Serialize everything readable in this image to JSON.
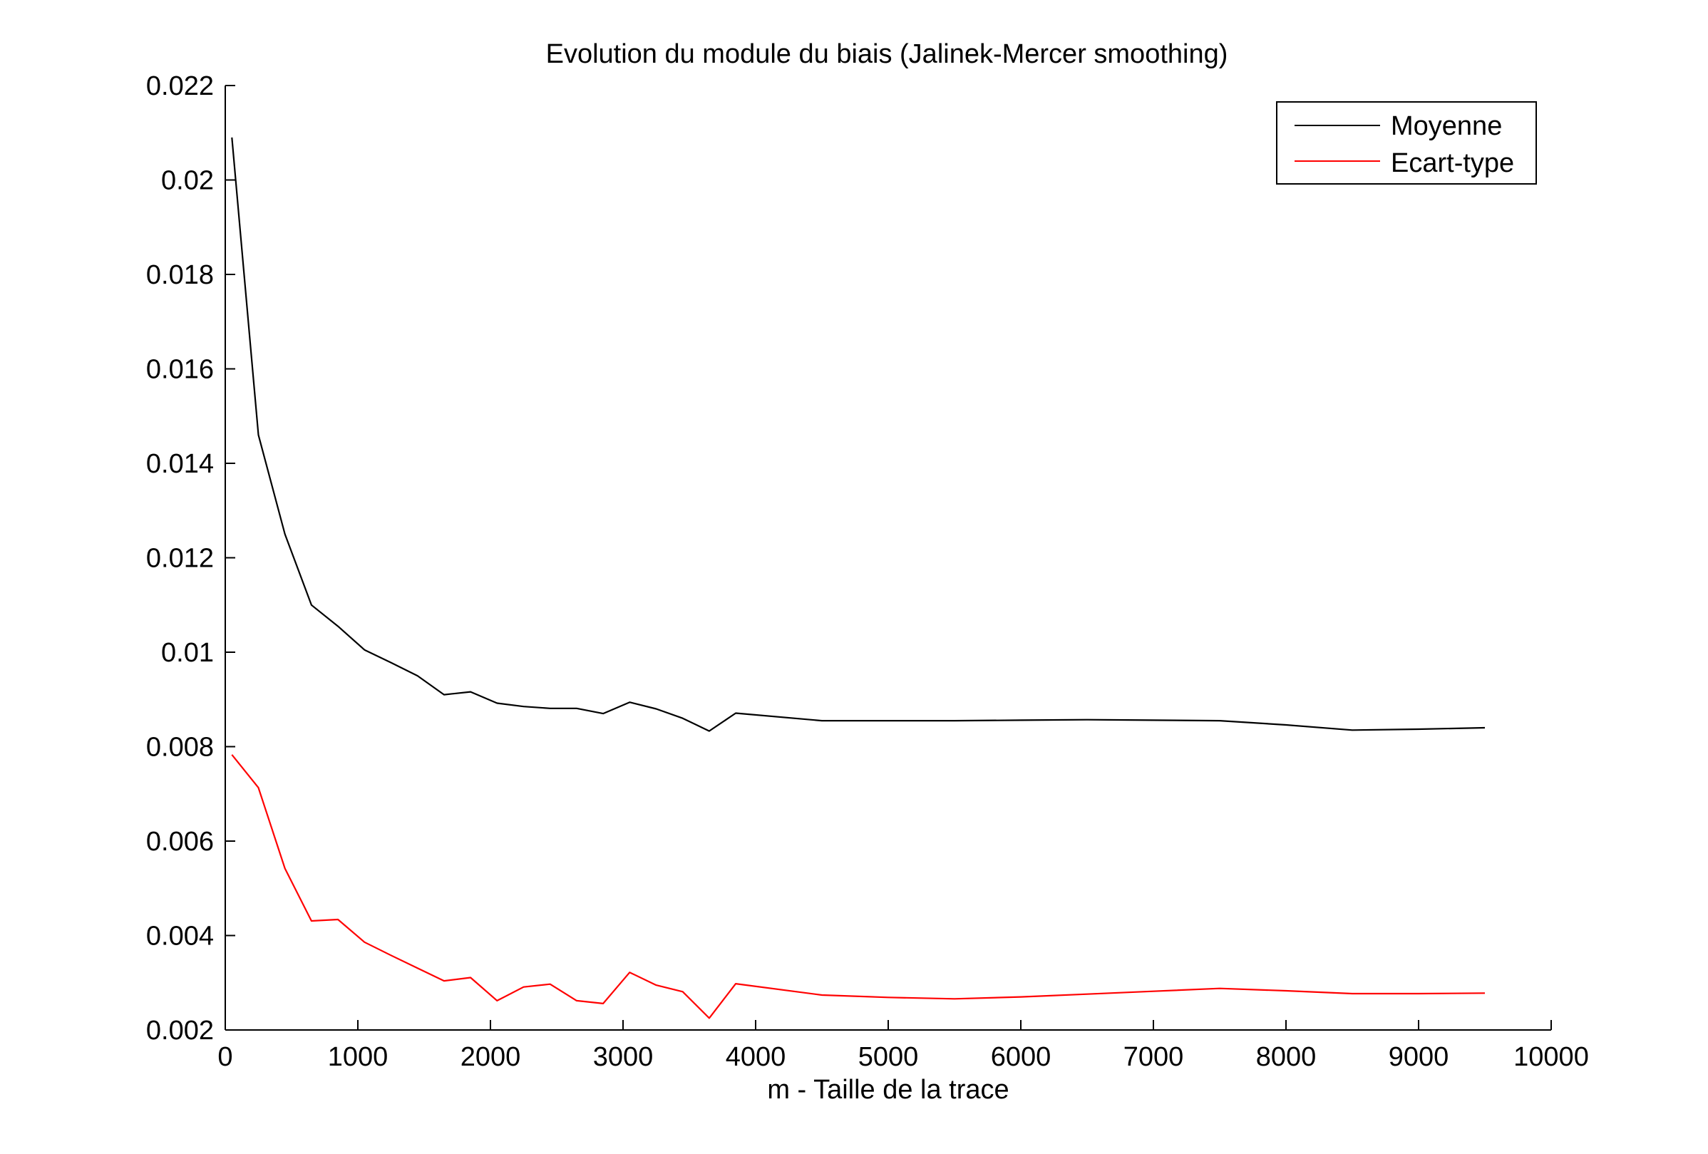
{
  "chart_data": {
    "type": "line",
    "title": "Evolution du module du biais (Jalinek-Mercer smoothing)",
    "xlabel": "m - Taille de la trace",
    "ylabel": "",
    "xlim": [
      0,
      10000
    ],
    "ylim": [
      0.002,
      0.022
    ],
    "x_ticks": [
      0,
      1000,
      2000,
      3000,
      4000,
      5000,
      6000,
      7000,
      8000,
      9000,
      10000
    ],
    "x_tick_labels": [
      "0",
      "1000",
      "2000",
      "3000",
      "4000",
      "5000",
      "6000",
      "7000",
      "8000",
      "9000",
      "10000"
    ],
    "y_ticks": [
      0.002,
      0.004,
      0.006,
      0.008,
      0.01,
      0.012,
      0.014,
      0.016,
      0.018,
      0.02,
      0.022
    ],
    "y_tick_labels": [
      "0.002",
      "0.004",
      "0.006",
      "0.008",
      "0.01",
      "0.012",
      "0.014",
      "0.016",
      "0.018",
      "0.02",
      "0.022"
    ],
    "grid": false,
    "legend_position": "top-right",
    "series": [
      {
        "name": "Moyenne",
        "color": "#000000",
        "x": [
          50,
          250,
          450,
          650,
          850,
          1050,
          1250,
          1450,
          1650,
          1850,
          2050,
          2250,
          2450,
          2650,
          2850,
          3050,
          3250,
          3450,
          3650,
          3850,
          4500,
          5000,
          5500,
          6000,
          6500,
          7000,
          7500,
          8000,
          8500,
          9000,
          9500
        ],
        "y": [
          0.0209,
          0.0146,
          0.0125,
          0.011,
          0.01055,
          0.01005,
          0.00978,
          0.0095,
          0.0091,
          0.00916,
          0.00892,
          0.00885,
          0.00881,
          0.00881,
          0.0087,
          0.00894,
          0.0088,
          0.0086,
          0.00833,
          0.00871,
          0.00855,
          0.00855,
          0.00855,
          0.00856,
          0.00857,
          0.00856,
          0.00855,
          0.00846,
          0.00835,
          0.00837,
          0.0084
        ]
      },
      {
        "name": "Ecart-type",
        "color": "#ff0000",
        "x": [
          50,
          250,
          450,
          650,
          850,
          1050,
          1250,
          1450,
          1650,
          1850,
          2050,
          2250,
          2450,
          2650,
          2850,
          3050,
          3250,
          3450,
          3650,
          3850,
          4500,
          5000,
          5500,
          6000,
          6500,
          7000,
          7500,
          8000,
          8500,
          9000,
          9500
        ],
        "y": [
          0.00783,
          0.00713,
          0.00542,
          0.00431,
          0.00434,
          0.00386,
          0.00358,
          0.00331,
          0.00304,
          0.00311,
          0.00262,
          0.00291,
          0.00297,
          0.00262,
          0.00256,
          0.00322,
          0.00295,
          0.00281,
          0.00225,
          0.00298,
          0.00274,
          0.00269,
          0.00266,
          0.0027,
          0.00276,
          0.00282,
          0.00288,
          0.00283,
          0.00277,
          0.00277,
          0.00278
        ]
      }
    ]
  }
}
